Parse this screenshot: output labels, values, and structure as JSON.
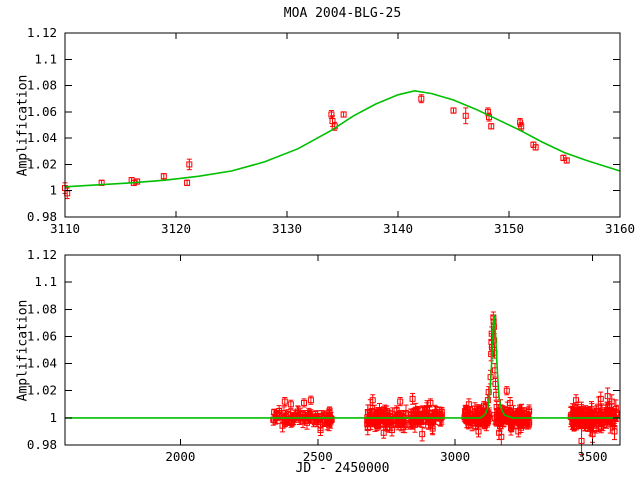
{
  "title": "MOA 2004-BLG-25",
  "colors": {
    "curve": "#00c000",
    "points": "#ff0000",
    "axis": "#000000",
    "background": "#ffffff"
  },
  "chart_data": [
    {
      "type": "scatter",
      "panel": "top",
      "ylabel": "Amplification",
      "xlim": [
        3110,
        3160
      ],
      "ylim": [
        0.98,
        1.12
      ],
      "grid": false,
      "legend": "none",
      "x_ticks": [
        3110,
        3120,
        3130,
        3140,
        3150,
        3160
      ],
      "x_tick_labels": [
        "3110",
        "3120",
        "3130",
        "3140",
        "3150",
        "3160"
      ],
      "y_ticks": [
        0.98,
        1.0,
        1.02,
        1.04,
        1.06,
        1.08,
        1.1,
        1.12
      ],
      "y_tick_labels": [
        "0.98",
        "1",
        "1.02",
        "1.04",
        "1.06",
        "1.08",
        "1.1",
        "1.12"
      ],
      "curve_name": "microlensing-model",
      "curve_points": [
        [
          3110,
          1.003
        ],
        [
          3113,
          1.0045
        ],
        [
          3116,
          1.006
        ],
        [
          3119,
          1.008
        ],
        [
          3122,
          1.011
        ],
        [
          3125,
          1.015
        ],
        [
          3128,
          1.022
        ],
        [
          3131,
          1.032
        ],
        [
          3134,
          1.046
        ],
        [
          3136,
          1.057
        ],
        [
          3138,
          1.066
        ],
        [
          3140,
          1.073
        ],
        [
          3141.5,
          1.076
        ],
        [
          3143,
          1.074
        ],
        [
          3145,
          1.069
        ],
        [
          3147,
          1.062
        ],
        [
          3149,
          1.054
        ],
        [
          3151,
          1.046
        ],
        [
          3153,
          1.037
        ],
        [
          3155,
          1.029
        ],
        [
          3157,
          1.023
        ],
        [
          3160,
          1.015
        ]
      ],
      "points_name": "MOA-photometry",
      "data_points": [
        [
          3110.0,
          1.002,
          0.004
        ],
        [
          3110.2,
          0.998,
          0.004
        ],
        [
          3113.3,
          1.006,
          0.002
        ],
        [
          3116.0,
          1.008,
          0.002
        ],
        [
          3116.2,
          1.006,
          0.002
        ],
        [
          3116.5,
          1.007,
          0.002
        ],
        [
          3118.9,
          1.011,
          0.002
        ],
        [
          3121.0,
          1.006,
          0.002
        ],
        [
          3121.2,
          1.02,
          0.004
        ],
        [
          3134.0,
          1.058,
          0.003
        ],
        [
          3134.1,
          1.053,
          0.004
        ],
        [
          3134.3,
          1.049,
          0.003
        ],
        [
          3135.1,
          1.058,
          0.002
        ],
        [
          3142.1,
          1.07,
          0.003
        ],
        [
          3145.0,
          1.061,
          0.002
        ],
        [
          3146.1,
          1.057,
          0.006
        ],
        [
          3148.1,
          1.06,
          0.003
        ],
        [
          3148.2,
          1.056,
          0.003
        ],
        [
          3148.4,
          1.049,
          0.002
        ],
        [
          3151.0,
          1.052,
          0.003
        ],
        [
          3151.1,
          1.049,
          0.003
        ],
        [
          3152.2,
          1.035,
          0.002
        ],
        [
          3152.4,
          1.033,
          0.002
        ],
        [
          3154.9,
          1.025,
          0.002
        ],
        [
          3155.2,
          1.023,
          0.002
        ]
      ]
    },
    {
      "type": "scatter",
      "panel": "bottom",
      "xlabel": "JD - 2450000",
      "ylabel": "Amplification",
      "xlim": [
        1580,
        3600
      ],
      "ylim": [
        0.98,
        1.12
      ],
      "grid": false,
      "legend": "none",
      "x_ticks": [
        2000,
        2500,
        3000,
        3500
      ],
      "x_tick_labels": [
        "2000",
        "2500",
        "3000",
        "3500"
      ],
      "y_ticks": [
        0.98,
        1.0,
        1.02,
        1.04,
        1.06,
        1.08,
        1.1,
        1.12
      ],
      "y_tick_labels": [
        "0.98",
        "1",
        "1.02",
        "1.04",
        "1.06",
        "1.08",
        "1.1",
        "1.12"
      ],
      "curve_name": "microlensing-model",
      "curve_points": [
        [
          1580,
          1.0
        ],
        [
          3090,
          1.0
        ],
        [
          3100,
          1.001
        ],
        [
          3110,
          1.003
        ],
        [
          3118,
          1.007
        ],
        [
          3124,
          1.014
        ],
        [
          3130,
          1.03
        ],
        [
          3134,
          1.046
        ],
        [
          3138,
          1.066
        ],
        [
          3141,
          1.076
        ],
        [
          3144,
          1.071
        ],
        [
          3148,
          1.058
        ],
        [
          3152,
          1.041
        ],
        [
          3156,
          1.026
        ],
        [
          3160,
          1.015
        ],
        [
          3166,
          1.008
        ],
        [
          3172,
          1.005
        ],
        [
          3180,
          1.002
        ],
        [
          3195,
          1.001
        ],
        [
          3210,
          1.0
        ],
        [
          3600,
          1.0
        ]
      ],
      "points_name": "MOA-photometry",
      "event_points": [
        [
          3112,
          1.008,
          0.003
        ],
        [
          3119,
          1.013,
          0.004
        ],
        [
          3122,
          1.019,
          0.004
        ],
        [
          3129,
          1.03,
          0.005
        ],
        [
          3131,
          1.047,
          0.005
        ],
        [
          3132,
          1.056,
          0.006
        ],
        [
          3133,
          1.062,
          0.005
        ],
        [
          3134,
          1.052,
          0.005
        ],
        [
          3139,
          1.074,
          0.004
        ],
        [
          3140,
          1.071,
          0.004
        ],
        [
          3141,
          1.067,
          0.005
        ],
        [
          3142,
          1.057,
          0.005
        ],
        [
          3143,
          1.048,
          0.004
        ],
        [
          3145,
          1.035,
          0.005
        ],
        [
          3147,
          1.025,
          0.004
        ],
        [
          3149,
          1.017,
          0.004
        ],
        [
          3151,
          1.008,
          0.004
        ],
        [
          3188,
          1.02,
          0.003
        ]
      ],
      "outlier_points": [
        [
          2380,
          1.012,
          0.003
        ],
        [
          2402,
          1.01,
          0.003
        ],
        [
          2450,
          1.011,
          0.003
        ],
        [
          2475,
          1.013,
          0.003
        ],
        [
          2510,
          0.991,
          0.004
        ],
        [
          2700,
          1.013,
          0.004
        ],
        [
          2740,
          0.989,
          0.004
        ],
        [
          2800,
          1.012,
          0.003
        ],
        [
          2845,
          1.014,
          0.004
        ],
        [
          2880,
          0.988,
          0.005
        ],
        [
          2910,
          1.011,
          0.003
        ],
        [
          3050,
          1.01,
          0.004
        ],
        [
          3085,
          0.99,
          0.004
        ],
        [
          3105,
          1.009,
          0.003
        ],
        [
          3160,
          0.989,
          0.005
        ],
        [
          3168,
          0.986,
          0.006
        ],
        [
          3200,
          1.011,
          0.004
        ],
        [
          3230,
          0.99,
          0.004
        ],
        [
          3440,
          1.013,
          0.004
        ],
        [
          3460,
          0.983,
          0.01
        ],
        [
          3500,
          0.988,
          0.006
        ],
        [
          3530,
          1.014,
          0.005
        ],
        [
          3555,
          1.016,
          0.006
        ],
        [
          3570,
          1.012,
          0.005
        ],
        [
          3580,
          0.99,
          0.006
        ]
      ],
      "scatter_clusters": [
        {
          "jd_range": [
            2337,
            2552
          ],
          "n": 80,
          "mean": 1.0,
          "spread": 0.0035,
          "err_min": 0.002,
          "err_max": 0.005
        },
        {
          "jd_range": [
            2678,
            2952
          ],
          "n": 160,
          "mean": 1.0,
          "spread": 0.0045,
          "err_min": 0.002,
          "err_max": 0.006
        },
        {
          "jd_range": [
            3032,
            3126
          ],
          "n": 70,
          "mean": 1.0,
          "spread": 0.004,
          "err_min": 0.002,
          "err_max": 0.006
        },
        {
          "jd_range": [
            3143,
            3272
          ],
          "n": 95,
          "mean": 1.0,
          "spread": 0.0045,
          "err_min": 0.002,
          "err_max": 0.006
        },
        {
          "jd_range": [
            3420,
            3588
          ],
          "n": 115,
          "mean": 1.0,
          "spread": 0.005,
          "err_min": 0.003,
          "err_max": 0.008
        }
      ],
      "random_seed": 1234
    }
  ]
}
